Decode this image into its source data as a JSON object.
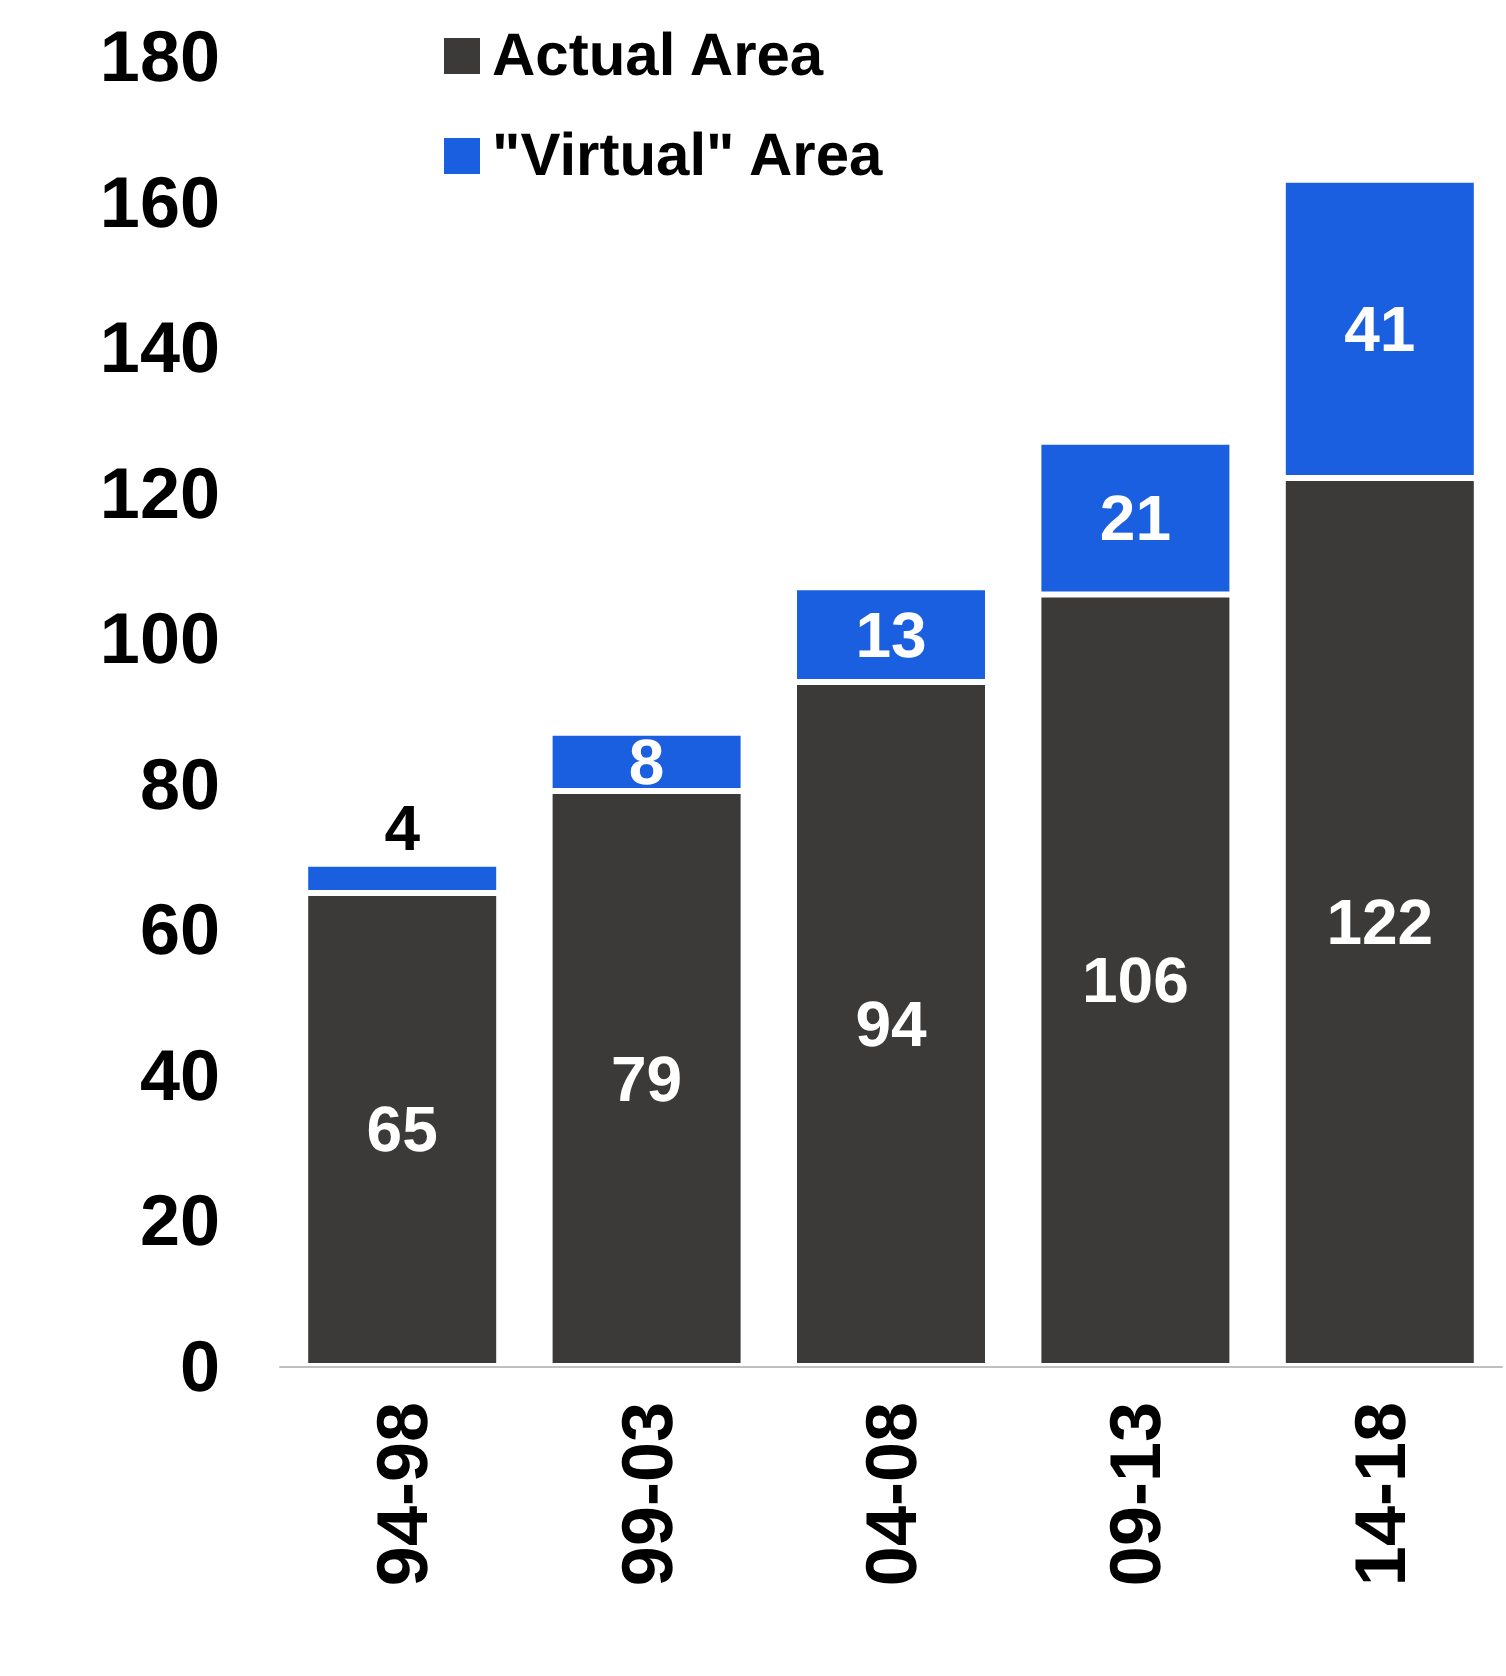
{
  "chart_data": {
    "type": "bar",
    "stacked": true,
    "categories": [
      "94-98",
      "99-03",
      "04-08",
      "09-13",
      "14-18"
    ],
    "series": [
      {
        "name": "Actual Area",
        "color": "#3b3a39",
        "values": [
          65,
          79,
          94,
          106,
          122
        ]
      },
      {
        "name": "\"Virtual\" Area",
        "color": "#1a5fe0",
        "values": [
          4,
          8,
          13,
          21,
          41
        ]
      }
    ],
    "ylim": [
      0,
      180
    ],
    "yticks": [
      0,
      20,
      40,
      60,
      80,
      100,
      120,
      140,
      160,
      180
    ],
    "grid": false,
    "legend": "top left",
    "data_labels": true
  }
}
